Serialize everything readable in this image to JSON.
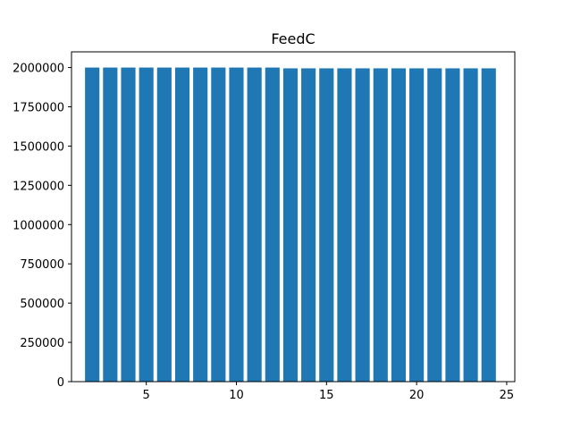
{
  "chart_data": {
    "type": "bar",
    "title": "FeedC",
    "xlabel": "",
    "ylabel": "",
    "x": [
      2,
      3,
      4,
      5,
      6,
      7,
      8,
      9,
      10,
      11,
      12,
      13,
      14,
      15,
      16,
      17,
      18,
      19,
      20,
      21,
      22,
      23,
      24
    ],
    "values": [
      2000000,
      2000000,
      2000000,
      2000000,
      2000000,
      2000000,
      2000000,
      2000000,
      2000000,
      2000000,
      2000000,
      1995000,
      1995000,
      1995000,
      1995000,
      1995000,
      1995000,
      1995000,
      1995000,
      1995000,
      1995000,
      1995000,
      1995000
    ],
    "xlim": [
      0.85,
      25.45
    ],
    "ylim": [
      0,
      2100000
    ],
    "xticks": [
      5,
      10,
      15,
      20,
      25
    ],
    "xtick_labels": [
      "5",
      "10",
      "15",
      "20",
      "25"
    ],
    "yticks": [
      0,
      250000,
      500000,
      750000,
      1000000,
      1250000,
      1500000,
      1750000,
      2000000
    ],
    "ytick_labels": [
      "0",
      "250000",
      "500000",
      "750000",
      "1000000",
      "1250000",
      "1500000",
      "1750000",
      "2000000"
    ],
    "bar_width": 0.8,
    "grid": false,
    "bar_color": "#1f77b4"
  }
}
